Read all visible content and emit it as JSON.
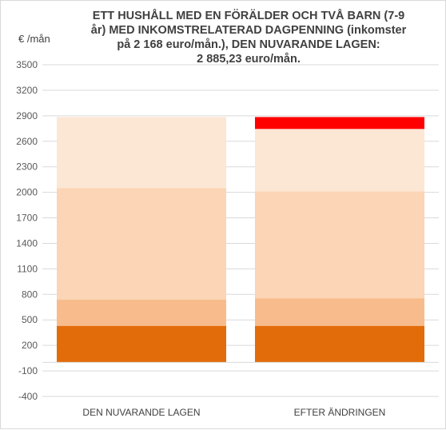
{
  "chart_data": {
    "type": "bar",
    "stacked": true,
    "title_lines": [
      "ETT HUSHÅLL MED EN FÖRÄLDER OCH TVÅ BARN (7-9",
      "år) MED INKOMSTRELATERAD DAGPENNING (inkomster",
      "på 2 168 euro/mån.), DEN NUVARANDE LAGEN:",
      "2 885,23 euro/mån."
    ],
    "ylabel": "€ /mån",
    "categories": [
      "DEN NUVARANDE LAGEN",
      "EFTER ÄNDRINGEN"
    ],
    "yticks": [
      "-400",
      "-100",
      "200",
      "500",
      "800",
      "1100",
      "1400",
      "1700",
      "2000",
      "2300",
      "2600",
      "2900",
      "3200",
      "3500"
    ],
    "ylim": [
      -400,
      3500
    ],
    "grid": true,
    "series": [
      {
        "values": [
          430,
          430
        ],
        "color": "#e36c0a"
      },
      {
        "values": [
          310,
          325
        ],
        "color": "#f8bc8c"
      },
      {
        "values": [
          1310,
          1255
        ],
        "color": "#fbd5b5"
      },
      {
        "values": [
          835,
          735
        ],
        "color": "#fce6d4"
      },
      {
        "values": [
          0,
          140
        ],
        "color": "#ff0000"
      }
    ]
  }
}
